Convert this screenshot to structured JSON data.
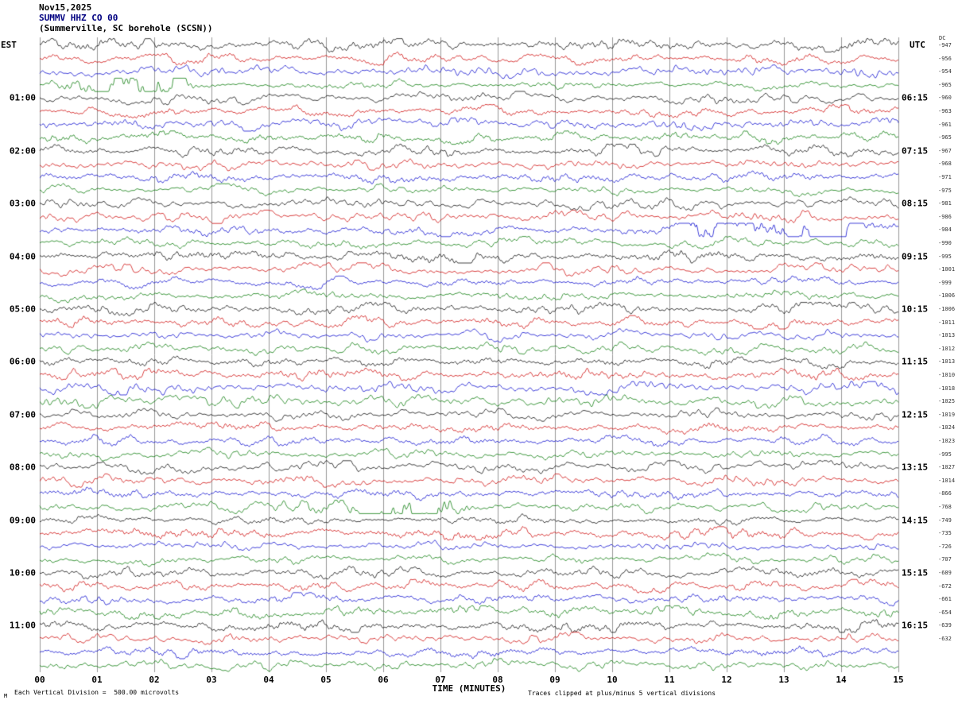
{
  "header": {
    "date": "Nov15,2025",
    "station": "SUMMV HHZ CO 00",
    "location": "(Summerville, SC borehole (SCSN))"
  },
  "axes": {
    "left_tz_label": "EST",
    "right_tz_label": "UTC",
    "dc_label": "DC"
  },
  "footer": {
    "x_title": "TIME (MINUTES)",
    "scale_note": "Each Vertical Division =  500.00 microvolts",
    "clip_note": "Traces clipped at plus/minus 5 vertical divisions",
    "corner_mark": "M"
  },
  "chart_data": {
    "type": "line",
    "subtype": "helicorder-seismogram",
    "title": "SUMMV HHZ CO 00 (Summerville, SC borehole (SCSN)) Nov15,2025",
    "xlabel": "TIME (MINUTES)",
    "x_ticks": [
      "00",
      "01",
      "02",
      "03",
      "04",
      "05",
      "06",
      "07",
      "08",
      "09",
      "10",
      "11",
      "12",
      "13",
      "14",
      "15"
    ],
    "minutes_per_row": 15,
    "clip_divisions": 5,
    "microvolts_per_division": 500.0,
    "grid": true,
    "color_cycle": [
      "black",
      "red",
      "blue",
      "green"
    ],
    "trace_colors": {
      "black": "#000000",
      "red": "#cc0000",
      "blue": "#0000cc",
      "green": "#007700"
    },
    "rows": [
      {
        "color": "black",
        "dc": -947
      },
      {
        "color": "red",
        "dc": -956
      },
      {
        "color": "blue",
        "dc": -954,
        "events": [
          {
            "start_min": 13.7,
            "end_min": 15,
            "gain": 2.6
          }
        ]
      },
      {
        "color": "green",
        "dc": -965,
        "events": [
          {
            "start_min": 0,
            "end_min": 2.9,
            "gain": 4.3
          }
        ]
      },
      {
        "color": "black",
        "est": "01:00",
        "utc": "06:15",
        "dc": -960
      },
      {
        "color": "red",
        "dc": -963
      },
      {
        "color": "blue",
        "dc": -961
      },
      {
        "color": "green",
        "dc": -965
      },
      {
        "color": "black",
        "est": "02:00",
        "utc": "07:15",
        "dc": -967
      },
      {
        "color": "red",
        "dc": -968
      },
      {
        "color": "blue",
        "dc": -971
      },
      {
        "color": "green",
        "dc": -975
      },
      {
        "color": "black",
        "est": "03:00",
        "utc": "08:15",
        "dc": -981
      },
      {
        "color": "red",
        "dc": -986
      },
      {
        "color": "blue",
        "dc": -984,
        "events": [
          {
            "start_min": 11.1,
            "end_min": 14.6,
            "gain": 3.9
          }
        ]
      },
      {
        "color": "green",
        "dc": -990
      },
      {
        "color": "black",
        "est": "04:00",
        "utc": "09:15",
        "dc": -995
      },
      {
        "color": "red",
        "dc": -1001
      },
      {
        "color": "blue",
        "dc": -999
      },
      {
        "color": "green",
        "dc": -1006
      },
      {
        "color": "black",
        "est": "05:00",
        "utc": "10:15",
        "dc": -1006
      },
      {
        "color": "red",
        "dc": -1011
      },
      {
        "color": "blue",
        "dc": -1013
      },
      {
        "color": "green",
        "dc": -1012
      },
      {
        "color": "black",
        "est": "06:00",
        "utc": "11:15",
        "dc": -1013
      },
      {
        "color": "red",
        "dc": -1010
      },
      {
        "color": "blue",
        "dc": -1018
      },
      {
        "color": "green",
        "dc": -1025
      },
      {
        "color": "black",
        "est": "07:00",
        "utc": "12:15",
        "dc": -1019
      },
      {
        "color": "red",
        "dc": -1024
      },
      {
        "color": "blue",
        "dc": -1023
      },
      {
        "color": "green",
        "dc": -995
      },
      {
        "color": "black",
        "est": "08:00",
        "utc": "13:15",
        "dc": -1027
      },
      {
        "color": "red",
        "dc": -1014
      },
      {
        "color": "blue",
        "dc": -866
      },
      {
        "color": "green",
        "dc": -768,
        "events": [
          {
            "start_min": 3.9,
            "end_min": 7.8,
            "gain": 3.3
          }
        ]
      },
      {
        "color": "black",
        "est": "09:00",
        "utc": "14:15",
        "dc": -749
      },
      {
        "color": "red",
        "dc": -735
      },
      {
        "color": "blue",
        "dc": -726
      },
      {
        "color": "green",
        "dc": -707
      },
      {
        "color": "black",
        "est": "10:00",
        "utc": "15:15",
        "dc": -689
      },
      {
        "color": "red",
        "dc": -672
      },
      {
        "color": "blue",
        "dc": -661
      },
      {
        "color": "green",
        "dc": -654
      },
      {
        "color": "black",
        "est": "11:00",
        "utc": "16:15",
        "dc": -639
      },
      {
        "color": "red",
        "dc": -632
      },
      {
        "color": "blue",
        "dc": null
      },
      {
        "color": "green",
        "dc": null
      }
    ]
  }
}
